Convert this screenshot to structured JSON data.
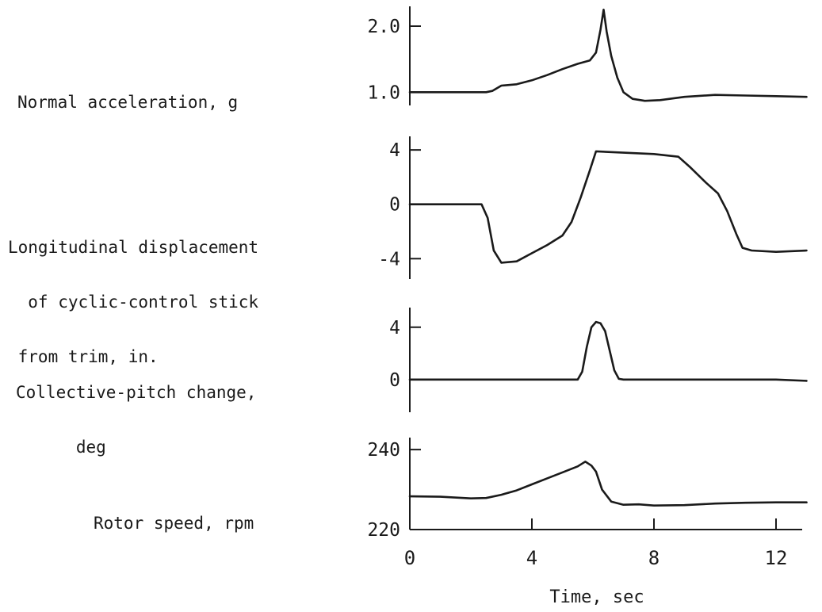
{
  "chart_data": {
    "type": "line",
    "x_shared": {
      "xlabel": "Time, sec",
      "xlim": [
        0,
        13.2
      ],
      "ticks": [
        0,
        4,
        8,
        12
      ],
      "tick_labels": [
        "0",
        "4",
        "8",
        "12"
      ]
    },
    "panels": [
      {
        "label_lines": [
          "Normal acceleration, g"
        ],
        "ylim": [
          0.8,
          2.3
        ],
        "yticks": [
          1.0,
          2.0
        ],
        "ytick_labels": [
          "1.0",
          "2.0"
        ],
        "series": [
          {
            "x": [
              0,
              1,
              2,
              2.5,
              2.7,
              3.0,
              3.5,
              4.0,
              4.5,
              5.0,
              5.5,
              5.9,
              6.1,
              6.25,
              6.35,
              6.45,
              6.6,
              6.8,
              7.0,
              7.3,
              7.7,
              8.2,
              9.0,
              10.0,
              11.0,
              12.0,
              13.0
            ],
            "y": [
              1.0,
              1.0,
              1.0,
              1.0,
              1.02,
              1.1,
              1.12,
              1.18,
              1.26,
              1.35,
              1.43,
              1.48,
              1.6,
              1.95,
              2.25,
              1.92,
              1.55,
              1.22,
              1.0,
              0.9,
              0.87,
              0.88,
              0.93,
              0.96,
              0.95,
              0.94,
              0.93
            ]
          }
        ]
      },
      {
        "label_lines": [
          "Longitudinal displacement",
          "  of cyclic-control stick",
          " from trim, in."
        ],
        "ylim": [
          -5.5,
          5
        ],
        "yticks": [
          -4,
          0,
          4
        ],
        "ytick_labels": [
          "-4",
          "0",
          "4"
        ],
        "series": [
          {
            "x": [
              0,
              1,
              2,
              2.35,
              2.55,
              2.75,
              3.0,
              3.5,
              4.0,
              4.5,
              5.0,
              5.3,
              5.6,
              5.9,
              6.1,
              7.0,
              8.0,
              8.8,
              9.2,
              9.7,
              10.1,
              10.4,
              10.7,
              10.9,
              11.2,
              12.0,
              13.0
            ],
            "y": [
              0,
              0,
              0,
              0,
              -1.0,
              -3.4,
              -4.3,
              -4.2,
              -3.6,
              -3.0,
              -2.3,
              -1.3,
              0.5,
              2.5,
              3.9,
              3.8,
              3.7,
              3.5,
              2.7,
              1.6,
              0.8,
              -0.5,
              -2.2,
              -3.2,
              -3.4,
              -3.5,
              -3.4
            ]
          }
        ]
      },
      {
        "label_lines": [
          "Collective-pitch change,",
          "      deg"
        ],
        "ylim": [
          -2.5,
          5.5
        ],
        "yticks": [
          0,
          4
        ],
        "ytick_labels": [
          "0",
          "4"
        ],
        "series": [
          {
            "x": [
              0,
              2,
              4,
              5.0,
              5.5,
              5.65,
              5.8,
              5.95,
              6.1,
              6.25,
              6.4,
              6.55,
              6.7,
              6.85,
              7.0,
              8.0,
              10.0,
              12.0,
              13.0
            ],
            "y": [
              0,
              0,
              0,
              0,
              0,
              0.6,
              2.5,
              4.0,
              4.4,
              4.3,
              3.7,
              2.2,
              0.7,
              0.05,
              0,
              0,
              0,
              0,
              -0.1
            ]
          }
        ]
      },
      {
        "label_lines": [
          "Rotor speed, rpm"
        ],
        "ylim": [
          220,
          243
        ],
        "yticks": [
          220,
          240
        ],
        "ytick_labels": [
          "220",
          "240"
        ],
        "series": [
          {
            "x": [
              0,
              1,
              2,
              2.5,
              3.0,
              3.5,
              4.0,
              4.5,
              5.0,
              5.5,
              5.75,
              5.95,
              6.1,
              6.3,
              6.6,
              7.0,
              7.5,
              8.0,
              9.0,
              10.0,
              11.0,
              12.0,
              13.0
            ],
            "y": [
              228.3,
              228.2,
              227.8,
              227.9,
              228.7,
              229.8,
              231.3,
              232.8,
              234.3,
              235.8,
              237.0,
              236.0,
              234.5,
              230.0,
              227.0,
              226.2,
              226.3,
              226.0,
              226.1,
              226.5,
              226.7,
              226.8,
              226.8
            ]
          }
        ]
      }
    ]
  }
}
